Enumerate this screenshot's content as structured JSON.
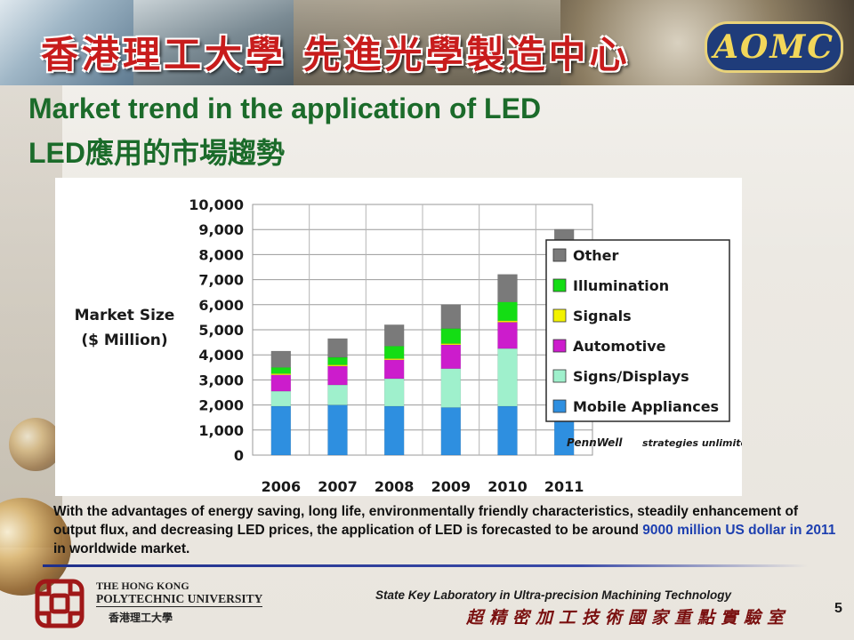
{
  "banner": {
    "title_zh": "香港理工大學 先進光學製造中心",
    "logo": "AOMC"
  },
  "slide": {
    "title_en": "Market trend in the application of LED",
    "title_zh": "LED應用的市場趨勢"
  },
  "chart_data": {
    "type": "bar",
    "stacked": true,
    "ylabel_line1": "Market Size",
    "ylabel_line2": "($ Million)",
    "ylim": [
      0,
      10000
    ],
    "yticks": [
      "0",
      "1,000",
      "2,000",
      "3,000",
      "4,000",
      "5,000",
      "6,000",
      "7,000",
      "8,000",
      "9,000",
      "10,000"
    ],
    "categories": [
      "2006",
      "2007",
      "2008",
      "2009",
      "2010",
      "2011"
    ],
    "grid": true,
    "legend_position": "right",
    "series": [
      {
        "name": "Mobile Appliances",
        "color": "#2e8fe0",
        "values": [
          1950,
          2000,
          1950,
          1900,
          1950,
          2150
        ]
      },
      {
        "name": "Signs/Displays",
        "color": "#9ff0cc",
        "values": [
          600,
          800,
          1100,
          1550,
          2300,
          3400
        ]
      },
      {
        "name": "Automotive",
        "color": "#cc1ccc",
        "values": [
          650,
          750,
          750,
          950,
          1050,
          1200
        ]
      },
      {
        "name": "Signals",
        "color": "#f2f200",
        "values": [
          50,
          50,
          50,
          50,
          60,
          60
        ]
      },
      {
        "name": "Illumination",
        "color": "#14dd14",
        "values": [
          250,
          300,
          500,
          600,
          750,
          950
        ]
      },
      {
        "name": "Other",
        "color": "#7a7a7a",
        "values": [
          650,
          750,
          850,
          950,
          1100,
          1250
        ]
      }
    ],
    "legend_order": [
      "Other",
      "Illumination",
      "Signals",
      "Automotive",
      "Signs/Displays",
      "Mobile Appliances"
    ],
    "sources": [
      "PennWell",
      "strategies unlimited"
    ]
  },
  "description": {
    "part1": "With the advantages of energy saving, long life, environmentally friendly characteristics, steadily enhancement of output flux, and decreasing LED prices, the application of LED is forecasted to be around ",
    "highlight": "9000 million US dollar in 2011",
    "part2": " in worldwide market."
  },
  "footer": {
    "uni_line1": "THE HONG KONG",
    "uni_line2": "POLYTECHNIC UNIVERSITY",
    "uni_zh": "香港理工大學",
    "lab_en": "State Key Laboratory in Ultra-precision Machining Technology",
    "lab_zh": "超精密加工技術國家重點實驗室",
    "page_number": "5"
  },
  "colors": {
    "title": "#1b6b2a",
    "highlight": "#1d3fb0",
    "rule": "#1f2f8a"
  }
}
